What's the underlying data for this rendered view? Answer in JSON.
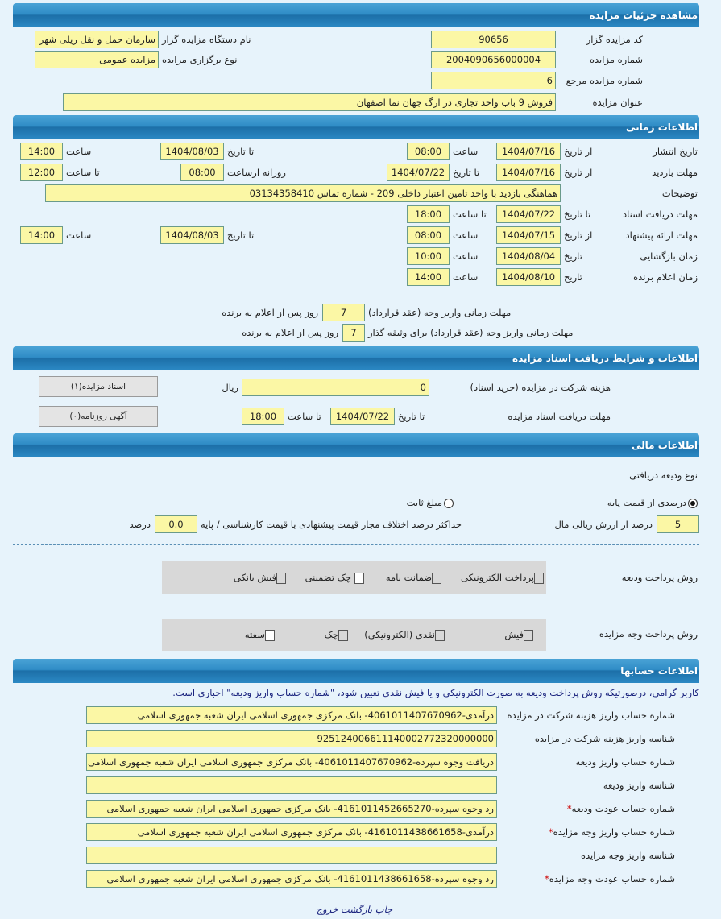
{
  "s1": {
    "title": "مشاهده جزئیات مزایده",
    "code_label": "کد مزایده گزار",
    "code": "90656",
    "org_label": "نام دستگاه مزایده گزار",
    "org": "سازمان حمل و نقل ریلی شهر",
    "num_label": "شماره مزایده",
    "num": "2004090656000004",
    "type_label": "نوع برگزاری مزایده",
    "type": "مزایده عمومی",
    "ref_label": "شماره مزایده مرجع",
    "ref": "6",
    "subject_label": "عنوان مزایده",
    "subject": "فروش 9 باب واحد تجاری در ارگ جهان نما اصفهان"
  },
  "s2": {
    "title": "اطلاعات زمانی",
    "from_date": "از تاریخ",
    "to_date": "تا تاریخ",
    "date": "تاریخ",
    "time": "ساعت",
    "to_time": "تا ساعت",
    "daily_from": "روزانه ازساعت",
    "publish_label": "تاریخ انتشار",
    "publish_from": "1404/07/16",
    "publish_from_time": "08:00",
    "publish_to": "1404/08/03",
    "publish_to_time": "14:00",
    "visit_label": "مهلت بازدید",
    "visit_from": "1404/07/16",
    "visit_to": "1404/07/22",
    "visit_daily_from": "08:00",
    "visit_to_time": "12:00",
    "desc_label": "توضیحات",
    "desc": "هماهنگی بازدید با واحد تامین اعتبار داخلی 209 - شماره تماس 03134358410",
    "docs_label": "مهلت دریافت اسناد",
    "docs_to": "1404/07/22",
    "docs_to_time": "18:00",
    "offer_label": "مهلت ارائه پیشنهاد",
    "offer_from": "1404/07/15",
    "offer_from_time": "08:00",
    "offer_to": "1404/08/03",
    "offer_to_time": "14:00",
    "open_label": "زمان بازگشایی",
    "open_date": "1404/08/04",
    "open_time": "10:00",
    "winner_label": "زمان اعلام برنده",
    "winner_date": "1404/08/10",
    "winner_time": "14:00",
    "pay_label": "مهلت زمانی واریز وجه (عقد قرارداد)",
    "pay_days": "7",
    "pay_suffix": "روز پس از اعلام به برنده",
    "pay2_label": "مهلت زمانی واریز وجه (عقد قرارداد) برای وثیقه گذار",
    "pay2_days": "7",
    "pay2_suffix": "روز پس از اعلام به برنده"
  },
  "s3": {
    "title": "اطلاعات و شرایط دریافت اسناد مزایده",
    "fee_label": "هزینه شرکت در مزایده (خرید اسناد)",
    "fee": "0",
    "currency": "ریال",
    "docs_button": "اسناد مزایده(۱)",
    "deadline_label": "مهلت دریافت اسناد مزایده",
    "to_date": "تا تاریخ",
    "deadline_date": "1404/07/22",
    "to_time": "تا ساعت",
    "deadline_time": "18:00",
    "ad_button": "آگهی روزنامه(۰)"
  },
  "s4": {
    "title": "اطلاعات مالی",
    "deposit_type_label": "نوع ودیعه دریافتی",
    "opt_percent": "درصدی از قیمت پایه",
    "opt_fixed": "مبلغ ثابت",
    "selected": "percent",
    "percent": "5",
    "percent_suffix": "درصد از ارزش ریالی مال",
    "max_diff_label": "حداکثر درصد اختلاف مجاز قیمت پیشنهادی با قیمت کارشناسی / پایه",
    "max_diff": "0.0",
    "max_diff_suffix": "درصد",
    "deposit_pay_label": "روش پرداخت ودیعه",
    "deposit_methods": [
      {
        "label": "پرداخت الکترونیکی",
        "checked": true
      },
      {
        "label": "ضمانت نامه",
        "checked": true
      },
      {
        "label": "چک تضمینی",
        "checked": false
      },
      {
        "label": "فیش بانکی",
        "checked": true
      }
    ],
    "auction_pay_label": "روش پرداخت وجه مزایده",
    "auction_methods": [
      {
        "label": "فیش",
        "checked": true
      },
      {
        "label": "نقدی (الکترونیکی)",
        "checked": true
      },
      {
        "label": "چک",
        "checked": true
      },
      {
        "label": "سفته",
        "checked": false
      }
    ]
  },
  "s5": {
    "title": "اطلاعات حسابها",
    "note": "کاربر گرامی، درصورتیکه روش پرداخت ودیعه به صورت الکترونیکی و یا فیش نقدی تعیین شود، \"شماره حساب واریز ودیعه\" اجباری است.",
    "rows": [
      {
        "label": "شماره حساب واریز هزینه شرکت در مزایده",
        "value": "درآمدی-4061011407670962- بانک مرکزی جمهوری اسلامی ایران شعبه جمهوری اسلامی",
        "required": false
      },
      {
        "label": "شناسه واریز هزینه شرکت در مزایده",
        "value": "925124006611140002772320000000",
        "required": false
      },
      {
        "label": "شماره حساب واریز ودیعه",
        "value": "دریافت وجوه سپرده-4061011407670962- بانک مرکزی جمهوری اسلامی ایران شعبه جمهوری اسلامی",
        "required": false
      },
      {
        "label": "شناسه واریز ودیعه",
        "value": "",
        "required": false
      },
      {
        "label": "شماره حساب عودت ودیعه",
        "value": "رد وجوه سپرده-4161011452665270- بانک مرکزی جمهوری اسلامی ایران شعبه جمهوری اسلامی",
        "required": true
      },
      {
        "label": "شماره حساب واریز وجه مزایده",
        "value": "درآمدی-4161011438661658- بانک مرکزی جمهوری اسلامی ایران شعبه جمهوری اسلامی",
        "required": true
      },
      {
        "label": "شناسه واریز وجه مزایده",
        "value": "",
        "required": false
      },
      {
        "label": "شماره حساب عودت وجه مزایده",
        "value": "رد وجوه سپرده-4161011438661658- بانک مرکزی جمهوری اسلامی ایران شعبه جمهوری اسلامی",
        "required": true
      }
    ]
  },
  "footer": {
    "print": "چاپ",
    "back": "بازگشت",
    "exit": "خروج"
  }
}
